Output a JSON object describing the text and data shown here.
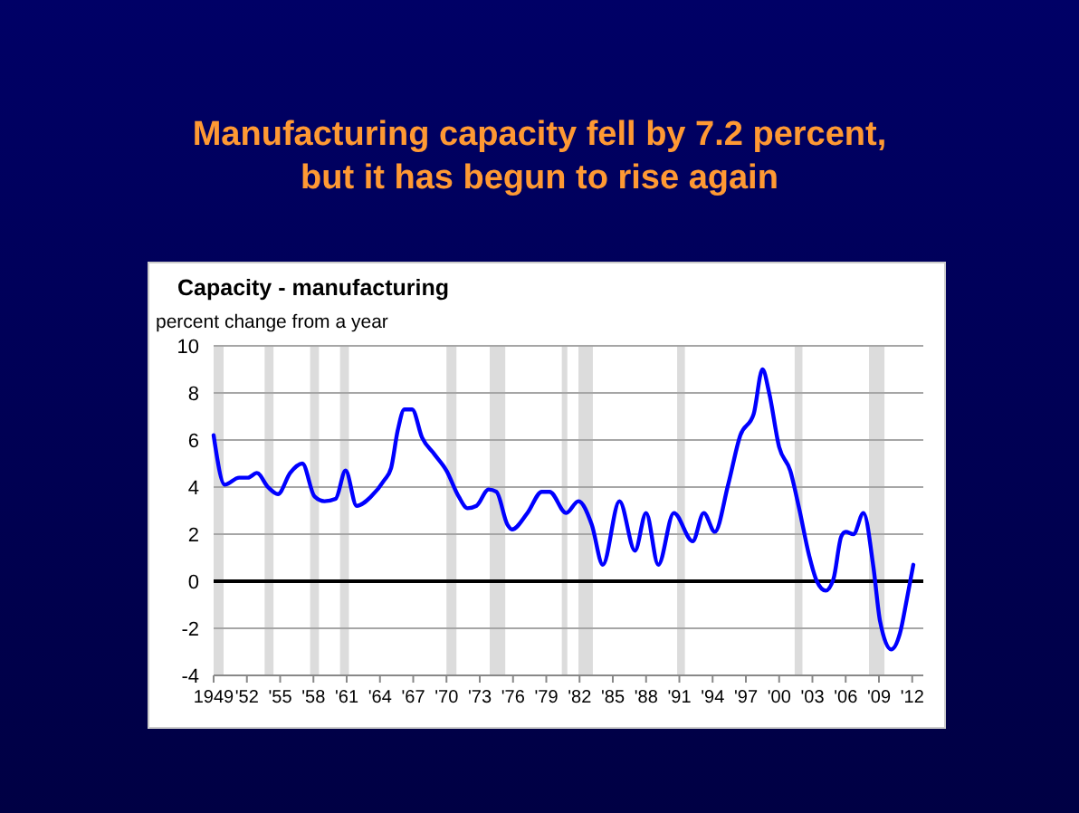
{
  "chart_data": {
    "type": "line",
    "title": "Manufacturing capacity fell by 7.2 percent,\nbut it has begun to rise again",
    "subtitle": "Capacity - manufacturing",
    "ylabel": "percent change from a year",
    "x": [
      1949.0,
      1950.0,
      1951.3,
      1952.1,
      1952.9,
      1953.9,
      1954.8,
      1955.9,
      1957.0,
      1958.1,
      1959.0,
      1960.0,
      1960.9,
      1961.9,
      1963.2,
      1964.4,
      1965.0,
      1965.6,
      1966.2,
      1966.9,
      1967.8,
      1968.9,
      1970.0,
      1971.1,
      1971.9,
      1972.7,
      1973.8,
      1974.5,
      1975.5,
      1975.9,
      1977.3,
      1978.6,
      1979.3,
      1980.8,
      1981.9,
      1983.1,
      1984.1,
      1985.6,
      1987.0,
      1988.0,
      1989.1,
      1990.5,
      1992.2,
      1993.2,
      1994.2,
      1995.4,
      1996.5,
      1997.7,
      1998.5,
      1999.1,
      2000.0,
      2001.0,
      2001.8,
      2002.7,
      2003.4,
      2004.2,
      2004.9,
      2005.6,
      2006.0,
      2006.7,
      2007.6,
      2008.5,
      2009.1,
      2010.1,
      2010.9,
      2011.5,
      2012.1
    ],
    "series": [
      {
        "color": "#0000ff",
        "values": [
          6.2,
          4.1,
          4.4,
          4.4,
          4.6,
          4.0,
          3.7,
          4.6,
          5.0,
          3.6,
          3.4,
          3.5,
          4.7,
          3.2,
          3.6,
          4.3,
          4.8,
          6.4,
          7.3,
          7.3,
          6.1,
          5.4,
          4.7,
          3.6,
          3.1,
          3.2,
          3.9,
          3.8,
          2.4,
          2.2,
          2.9,
          3.8,
          3.8,
          2.9,
          3.4,
          2.4,
          0.7,
          3.4,
          1.3,
          2.9,
          0.7,
          2.9,
          1.7,
          2.9,
          2.1,
          4.1,
          6.2,
          7.1,
          9.0,
          8.0,
          5.7,
          4.7,
          3.1,
          1.1,
          0.0,
          -0.4,
          0.1,
          1.9,
          2.1,
          2.0,
          2.9,
          0.6,
          -1.7,
          -2.9,
          -2.2,
          -0.8,
          0.7
        ]
      }
    ],
    "xlim": [
      1949,
      2013
    ],
    "xticks": [
      1949,
      {
        "value": 1952,
        "label": "'52"
      },
      {
        "value": 1955,
        "label": "'55"
      },
      {
        "value": 1958,
        "label": "'58"
      },
      {
        "value": 1961,
        "label": "'61"
      },
      {
        "value": 1964,
        "label": "'64"
      },
      {
        "value": 1967,
        "label": "'67"
      },
      {
        "value": 1970,
        "label": "'70"
      },
      {
        "value": 1973,
        "label": "'73"
      },
      {
        "value": 1976,
        "label": "'76"
      },
      {
        "value": 1979,
        "label": "'79"
      },
      {
        "value": 1982,
        "label": "'82"
      },
      {
        "value": 1985,
        "label": "'85"
      },
      {
        "value": 1988,
        "label": "'88"
      },
      {
        "value": 1991,
        "label": "'91"
      },
      {
        "value": 1994,
        "label": "'94"
      },
      {
        "value": 1997,
        "label": "'97"
      },
      {
        "value": 2000,
        "label": "'00"
      },
      {
        "value": 2003,
        "label": "'03"
      },
      {
        "value": 2006,
        "label": "'06"
      },
      {
        "value": 2009,
        "label": "'09"
      },
      {
        "value": 2012,
        "label": "'12"
      }
    ],
    "ylim": [
      -4,
      10
    ],
    "yticks": [
      -4,
      -2,
      0,
      2,
      4,
      6,
      8,
      10
    ],
    "grid": "y",
    "ref_lines": [
      {
        "axis": "y",
        "value": 0,
        "color": "#000000"
      }
    ],
    "bands": [
      {
        "axis": "x",
        "from": 1949.0,
        "to": 1949.9,
        "color": "#dcdcdc"
      },
      {
        "axis": "x",
        "from": 1953.6,
        "to": 1954.4,
        "color": "#dcdcdc"
      },
      {
        "axis": "x",
        "from": 1957.7,
        "to": 1958.5,
        "color": "#dcdcdc"
      },
      {
        "axis": "x",
        "from": 1960.4,
        "to": 1961.2,
        "color": "#dcdcdc"
      },
      {
        "axis": "x",
        "from": 1970.0,
        "to": 1970.9,
        "color": "#dcdcdc"
      },
      {
        "axis": "x",
        "from": 1973.9,
        "to": 1975.3,
        "color": "#dcdcdc"
      },
      {
        "axis": "x",
        "from": 1980.4,
        "to": 1980.9,
        "color": "#dcdcdc"
      },
      {
        "axis": "x",
        "from": 1981.9,
        "to": 1983.2,
        "color": "#dcdcdc"
      },
      {
        "axis": "x",
        "from": 1990.8,
        "to": 1991.5,
        "color": "#dcdcdc"
      },
      {
        "axis": "x",
        "from": 2001.4,
        "to": 2002.1,
        "color": "#dcdcdc"
      },
      {
        "axis": "x",
        "from": 2008.1,
        "to": 2009.5,
        "color": "#dcdcdc"
      }
    ]
  }
}
